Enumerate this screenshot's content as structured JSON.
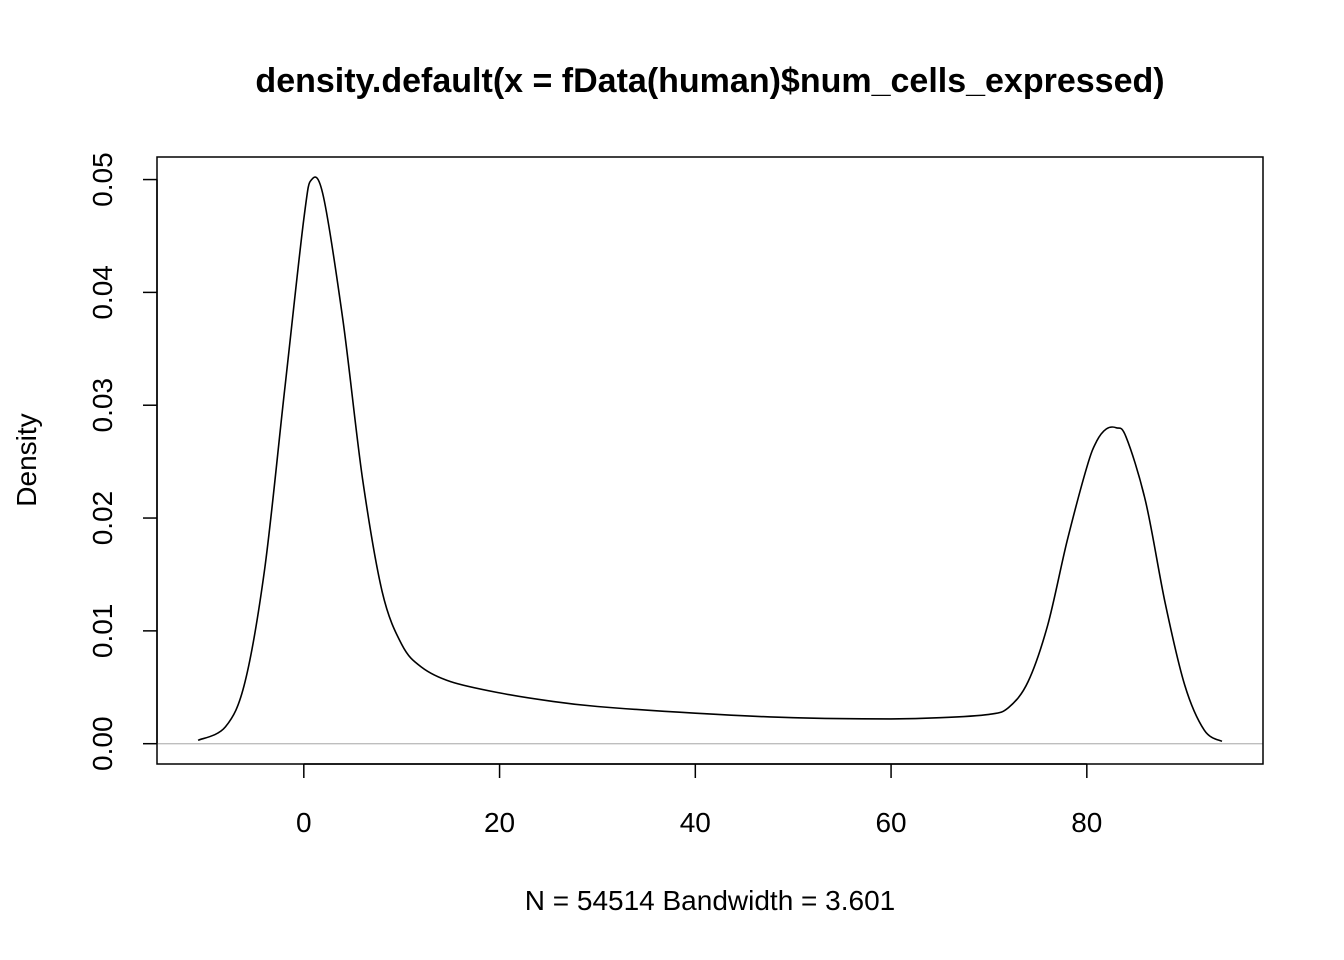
{
  "chart_data": {
    "type": "line",
    "title": "density.default(x = fData(human)$num_cells_expressed)",
    "xlabel": "N = 54514   Bandwidth = 3.601",
    "ylabel": "Density",
    "xlim": [
      -15,
      98
    ],
    "ylim": [
      -0.0018,
      0.052
    ],
    "x_ticks": [
      0,
      20,
      40,
      60,
      80
    ],
    "x_tick_labels": [
      "0",
      "20",
      "40",
      "60",
      "80"
    ],
    "y_ticks": [
      0.0,
      0.01,
      0.02,
      0.03,
      0.04,
      0.05
    ],
    "y_tick_labels": [
      "0.00",
      "0.01",
      "0.02",
      "0.03",
      "0.04",
      "0.05"
    ],
    "baseline": 0,
    "colors": {
      "line": "#000000",
      "baseline": "#bebebe",
      "frame": "#000000"
    },
    "series": [
      {
        "name": "density",
        "x": [
          -10.8,
          -8,
          -6,
          -4,
          -2,
          0,
          0.8,
          2,
          4,
          6,
          8,
          10,
          12,
          15,
          20,
          25,
          30,
          40,
          50,
          60,
          65,
          70,
          72,
          74,
          76,
          78,
          80,
          81,
          82,
          83,
          84,
          86,
          88,
          90,
          92,
          93.8
        ],
        "y": [
          0.0003,
          0.0015,
          0.0055,
          0.0155,
          0.031,
          0.0465,
          0.05,
          0.0485,
          0.0375,
          0.0235,
          0.0135,
          0.0088,
          0.0068,
          0.0055,
          0.0045,
          0.0038,
          0.0033,
          0.0027,
          0.0023,
          0.0022,
          0.0023,
          0.0026,
          0.0032,
          0.0055,
          0.0105,
          0.018,
          0.0245,
          0.0268,
          0.0279,
          0.028,
          0.0272,
          0.0215,
          0.0125,
          0.0052,
          0.0012,
          0.0002
        ]
      }
    ]
  }
}
